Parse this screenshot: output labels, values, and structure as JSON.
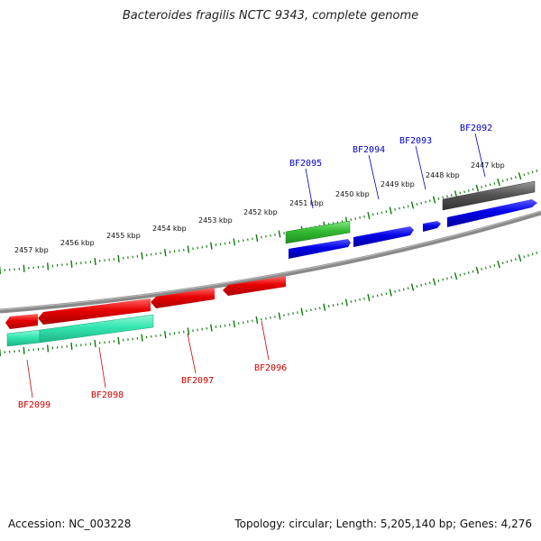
{
  "title": "Bacteroides fragilis NCTC 9343, complete genome",
  "footer": {
    "accession": "Accession: NC_003228",
    "summary": "Topology: circular; Length: 5,205,140 bp; Genes: 4,276"
  },
  "scale": {
    "labels": [
      "2457 kbp",
      "2456 kbp",
      "2455 kbp",
      "2454 kbp",
      "2453 kbp",
      "2452 kbp",
      "2451 kbp",
      "2450 kbp",
      "2449 kbp",
      "2448 kbp",
      "2447 kbp"
    ]
  },
  "genes_forward": [
    {
      "name": "BF2095",
      "color": "#0000cc"
    },
    {
      "name": "BF2094",
      "color": "#0000cc"
    },
    {
      "name": "BF2093",
      "color": "#0000cc"
    },
    {
      "name": "BF2092",
      "color": "#0000cc"
    }
  ],
  "genes_reverse": [
    {
      "name": "BF2096",
      "color": "#cc0000"
    },
    {
      "name": "BF2097",
      "color": "#cc0000"
    },
    {
      "name": "BF2098",
      "color": "#cc0000"
    },
    {
      "name": "BF2099",
      "color": "#cc0000"
    }
  ],
  "colors": {
    "forward_cds": "#0000e6",
    "reverse_cds": "#e60000",
    "forward_feature": "#33bb33",
    "reverse_feature": "#33e6b0",
    "other_feature": "#555555",
    "backbone": "#808080",
    "tick": "#0a7a0a"
  }
}
